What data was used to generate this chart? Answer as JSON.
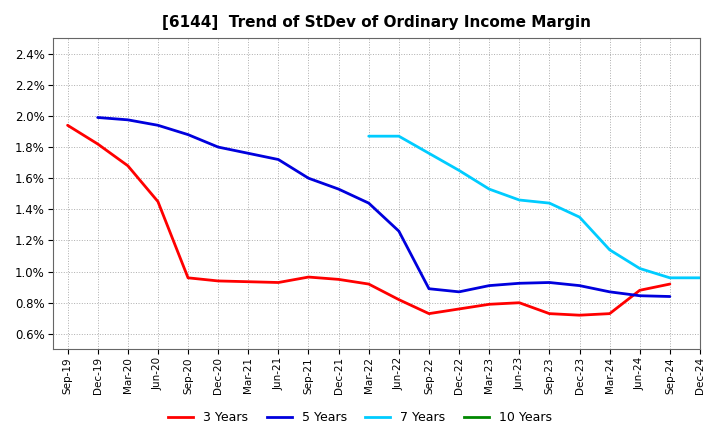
{
  "title": "[6144]  Trend of StDev of Ordinary Income Margin",
  "title_fontsize": 11,
  "background_color": "#ffffff",
  "plot_bg_color": "#ffffff",
  "grid_color": "#999999",
  "ylim": [
    0.005,
    0.025
  ],
  "yticks": [
    0.006,
    0.008,
    0.01,
    0.012,
    0.014,
    0.016,
    0.018,
    0.02,
    0.022,
    0.024
  ],
  "ytick_labels": [
    "0.6%",
    "0.8%",
    "1.0%",
    "1.2%",
    "1.4%",
    "1.6%",
    "1.8%",
    "2.0%",
    "2.2%",
    "2.4%"
  ],
  "x_labels": [
    "Sep-19",
    "Dec-19",
    "Mar-20",
    "Jun-20",
    "Sep-20",
    "Dec-20",
    "Mar-21",
    "Jun-21",
    "Sep-21",
    "Dec-21",
    "Mar-22",
    "Jun-22",
    "Sep-22",
    "Dec-22",
    "Mar-23",
    "Jun-23",
    "Sep-23",
    "Dec-23",
    "Mar-24",
    "Jun-24",
    "Sep-24",
    "Dec-24"
  ],
  "series": {
    "3 Years": {
      "color": "#ff0000",
      "linewidth": 2.0,
      "data_x": [
        0,
        1,
        2,
        3,
        4,
        5,
        6,
        7,
        8,
        9,
        10,
        11,
        12,
        13,
        14,
        15,
        16,
        17,
        18,
        19,
        20
      ],
      "data_y": [
        0.0194,
        0.0182,
        0.0168,
        0.0145,
        0.0096,
        0.0094,
        0.00935,
        0.0093,
        0.00965,
        0.0095,
        0.0092,
        0.0082,
        0.0073,
        0.0076,
        0.0079,
        0.008,
        0.0073,
        0.0072,
        0.0073,
        0.0088,
        0.0092
      ]
    },
    "5 Years": {
      "color": "#0000dd",
      "linewidth": 2.0,
      "data_x": [
        1,
        2,
        3,
        4,
        5,
        6,
        7,
        8,
        9,
        10,
        11,
        12,
        13,
        14,
        15,
        16,
        17,
        18,
        19,
        20
      ],
      "data_y": [
        0.0199,
        0.01975,
        0.0194,
        0.0188,
        0.018,
        0.0176,
        0.0172,
        0.016,
        0.0153,
        0.0144,
        0.0126,
        0.0089,
        0.0087,
        0.0091,
        0.00925,
        0.0093,
        0.0091,
        0.0087,
        0.00845,
        0.0084
      ]
    },
    "7 Years": {
      "color": "#00ccff",
      "linewidth": 2.0,
      "data_x": [
        10,
        11,
        12,
        13,
        14,
        15,
        16,
        17,
        18,
        19,
        20,
        21
      ],
      "data_y": [
        0.0187,
        0.0187,
        0.0176,
        0.0165,
        0.0153,
        0.0146,
        0.0144,
        0.0135,
        0.0114,
        0.0102,
        0.0096,
        0.0096
      ]
    },
    "10 Years": {
      "color": "#008800",
      "linewidth": 2.0,
      "data_x": [],
      "data_y": []
    }
  },
  "legend_labels": [
    "3 Years",
    "5 Years",
    "7 Years",
    "10 Years"
  ],
  "legend_colors": [
    "#ff0000",
    "#0000dd",
    "#00ccff",
    "#008800"
  ],
  "legend_ncol": 4,
  "legend_fontsize": 9
}
